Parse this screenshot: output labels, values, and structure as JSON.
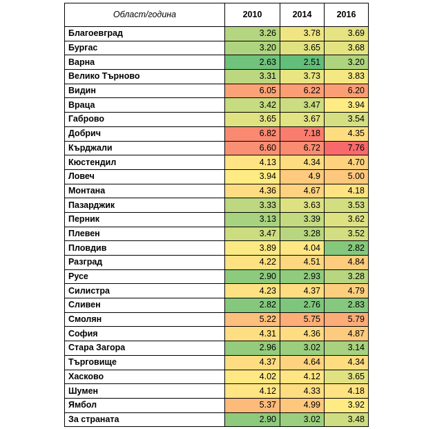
{
  "table": {
    "headers": [
      "Област/година",
      "2010",
      "2014",
      "2016"
    ],
    "rows": [
      {
        "name": "Благоевград",
        "values": [
          "3.26",
          "3.78",
          "3.69"
        ]
      },
      {
        "name": "Бургас",
        "values": [
          "3.20",
          "3.65",
          "3.68"
        ]
      },
      {
        "name": "Варна",
        "values": [
          "2.63",
          "2.51",
          "3.20"
        ]
      },
      {
        "name": "Велико Търново",
        "values": [
          "3.31",
          "3.73",
          "3.83"
        ]
      },
      {
        "name": "Видин",
        "values": [
          "6.05",
          "6.22",
          "6.20"
        ]
      },
      {
        "name": "Враца",
        "values": [
          "3.42",
          "3.47",
          "3.94"
        ]
      },
      {
        "name": "Габрово",
        "values": [
          "3.65",
          "3.67",
          "3.54"
        ]
      },
      {
        "name": "Добрич",
        "values": [
          "6.82",
          "7.18",
          "4.35"
        ]
      },
      {
        "name": "Кърджали",
        "values": [
          "6.60",
          "6.72",
          "7.76"
        ]
      },
      {
        "name": "Кюстендил",
        "values": [
          "4.13",
          "4.34",
          "4.70"
        ]
      },
      {
        "name": "Ловеч",
        "values": [
          "3.94",
          "4.9",
          "5.00"
        ]
      },
      {
        "name": "Монтана",
        "values": [
          "4.36",
          "4.67",
          "4.18"
        ]
      },
      {
        "name": "Пазарджик",
        "values": [
          "3.33",
          "3.63",
          "3.53"
        ]
      },
      {
        "name": "Перник",
        "values": [
          "3.13",
          "3.39",
          "3.62"
        ]
      },
      {
        "name": "Плевен",
        "values": [
          "3.47",
          "3.28",
          "3.52"
        ]
      },
      {
        "name": "Пловдив",
        "values": [
          "3.89",
          "4.04",
          "2.82"
        ]
      },
      {
        "name": "Разград",
        "values": [
          "4.22",
          "4.51",
          "4.84"
        ]
      },
      {
        "name": "Русе",
        "values": [
          "2.90",
          "2.93",
          "3.28"
        ]
      },
      {
        "name": "Силистра",
        "values": [
          "4.23",
          "4.37",
          "4.79"
        ]
      },
      {
        "name": "Сливен",
        "values": [
          "2.82",
          "2.76",
          "2.83"
        ]
      },
      {
        "name": "Смолян",
        "values": [
          "5.22",
          "5.75",
          "5.79"
        ]
      },
      {
        "name": "София",
        "values": [
          "4.31",
          "4.36",
          "4.87"
        ]
      },
      {
        "name": "Стара Загора",
        "values": [
          "2.96",
          "3.02",
          "3.14"
        ]
      },
      {
        "name": "Търговище",
        "values": [
          "4.37",
          "4.64",
          "4.34"
        ]
      },
      {
        "name": "Хасково",
        "values": [
          "4.02",
          "4.12",
          "3.65"
        ]
      },
      {
        "name": "Шумен",
        "values": [
          "4.12",
          "4.33",
          "4.18"
        ]
      },
      {
        "name": "Ямбол",
        "values": [
          "5.37",
          "4.99",
          "3.92"
        ]
      },
      {
        "name": "За страната",
        "values": [
          "2.90",
          "3.02",
          "3.48"
        ]
      }
    ]
  },
  "color_scale": {
    "low": "#63be7b",
    "mid": "#ffeb84",
    "high": "#f8696b",
    "min_value": 2.51,
    "max_value": 7.76
  }
}
